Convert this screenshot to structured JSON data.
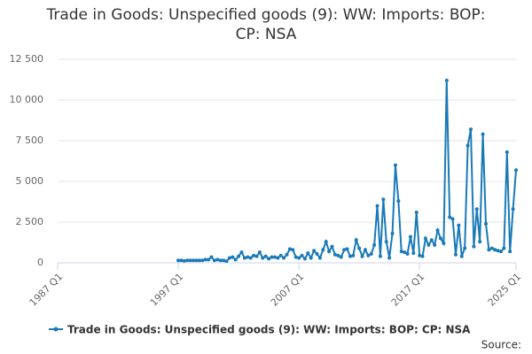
{
  "chart_data": {
    "type": "line",
    "title": "Trade in Goods: Unspecified goods (9): WW: Imports: BOP: CP: NSA",
    "source": "Source:",
    "categories": [
      "1987 Q1",
      null,
      null,
      null,
      null,
      null,
      null,
      null,
      null,
      null,
      null,
      null,
      null,
      null,
      null,
      null,
      null,
      null,
      null,
      null,
      null,
      null,
      null,
      null,
      null,
      null,
      null,
      null,
      null,
      null,
      null,
      null,
      null,
      null,
      null,
      null,
      null,
      null,
      null,
      null,
      "1997 Q1",
      null,
      null,
      null,
      null,
      null,
      null,
      null,
      null,
      null,
      null,
      null,
      null,
      null,
      null,
      null,
      null,
      null,
      null,
      null,
      null,
      null,
      null,
      null,
      null,
      null,
      null,
      null,
      null,
      null,
      null,
      null,
      null,
      null,
      null,
      null,
      null,
      null,
      null,
      null,
      "2007 Q1",
      null,
      null,
      null,
      null,
      null,
      null,
      null,
      null,
      null,
      null,
      null,
      null,
      null,
      null,
      null,
      null,
      null,
      null,
      null,
      null,
      null,
      null,
      null,
      null,
      null,
      null,
      null,
      null,
      null,
      null,
      null,
      null,
      null,
      null,
      null,
      null,
      null,
      null,
      null,
      "2017 Q1",
      null,
      null,
      null,
      null,
      null,
      null,
      null,
      null,
      null,
      null,
      null,
      null,
      null,
      null,
      null,
      null,
      null,
      null,
      null,
      null,
      null,
      null,
      null,
      null,
      null,
      null,
      null,
      null,
      null,
      null,
      null,
      "2025 Q1"
    ],
    "series": [
      {
        "name": "Trade in Goods: Unspecified goods (9): WW: Imports: BOP: CP: NSA",
        "color": "#1a7ab8",
        "values": [
          null,
          null,
          null,
          null,
          null,
          null,
          null,
          null,
          null,
          null,
          null,
          null,
          null,
          null,
          null,
          null,
          null,
          null,
          null,
          null,
          null,
          null,
          null,
          null,
          null,
          null,
          null,
          null,
          null,
          null,
          null,
          null,
          null,
          null,
          null,
          null,
          null,
          null,
          null,
          null,
          150,
          150,
          120,
          150,
          150,
          150,
          150,
          150,
          150,
          200,
          200,
          350,
          150,
          200,
          150,
          150,
          100,
          300,
          350,
          200,
          400,
          650,
          300,
          350,
          300,
          450,
          400,
          650,
          300,
          400,
          250,
          350,
          350,
          300,
          450,
          300,
          500,
          850,
          800,
          350,
          300,
          450,
          250,
          600,
          300,
          750,
          550,
          300,
          800,
          1300,
          700,
          1000,
          500,
          450,
          350,
          800,
          850,
          400,
          450,
          1400,
          900,
          400,
          800,
          450,
          550,
          1100,
          3500,
          400,
          3900,
          1300,
          300,
          1800,
          6000,
          3800,
          700,
          650,
          550,
          1600,
          600,
          3100,
          450,
          400,
          1500,
          1100,
          1400,
          1100,
          2000,
          1500,
          1200,
          11200,
          2800,
          2700,
          500,
          2300,
          400,
          900,
          7200,
          8200,
          1000,
          3300,
          1300,
          7900,
          2400,
          800,
          900,
          800,
          750,
          700,
          900,
          6800,
          700,
          3300,
          5700
        ]
      }
    ],
    "ylim": [
      0,
      12500
    ],
    "yticks": [
      0,
      {
        "value": 2500,
        "label": "2 500"
      },
      {
        "value": 5000,
        "label": "5 000"
      },
      {
        "value": 7500,
        "label": "7 500"
      },
      {
        "value": 10000,
        "label": "10 000"
      },
      {
        "value": 12500,
        "label": "12 500"
      }
    ],
    "grid": true
  }
}
